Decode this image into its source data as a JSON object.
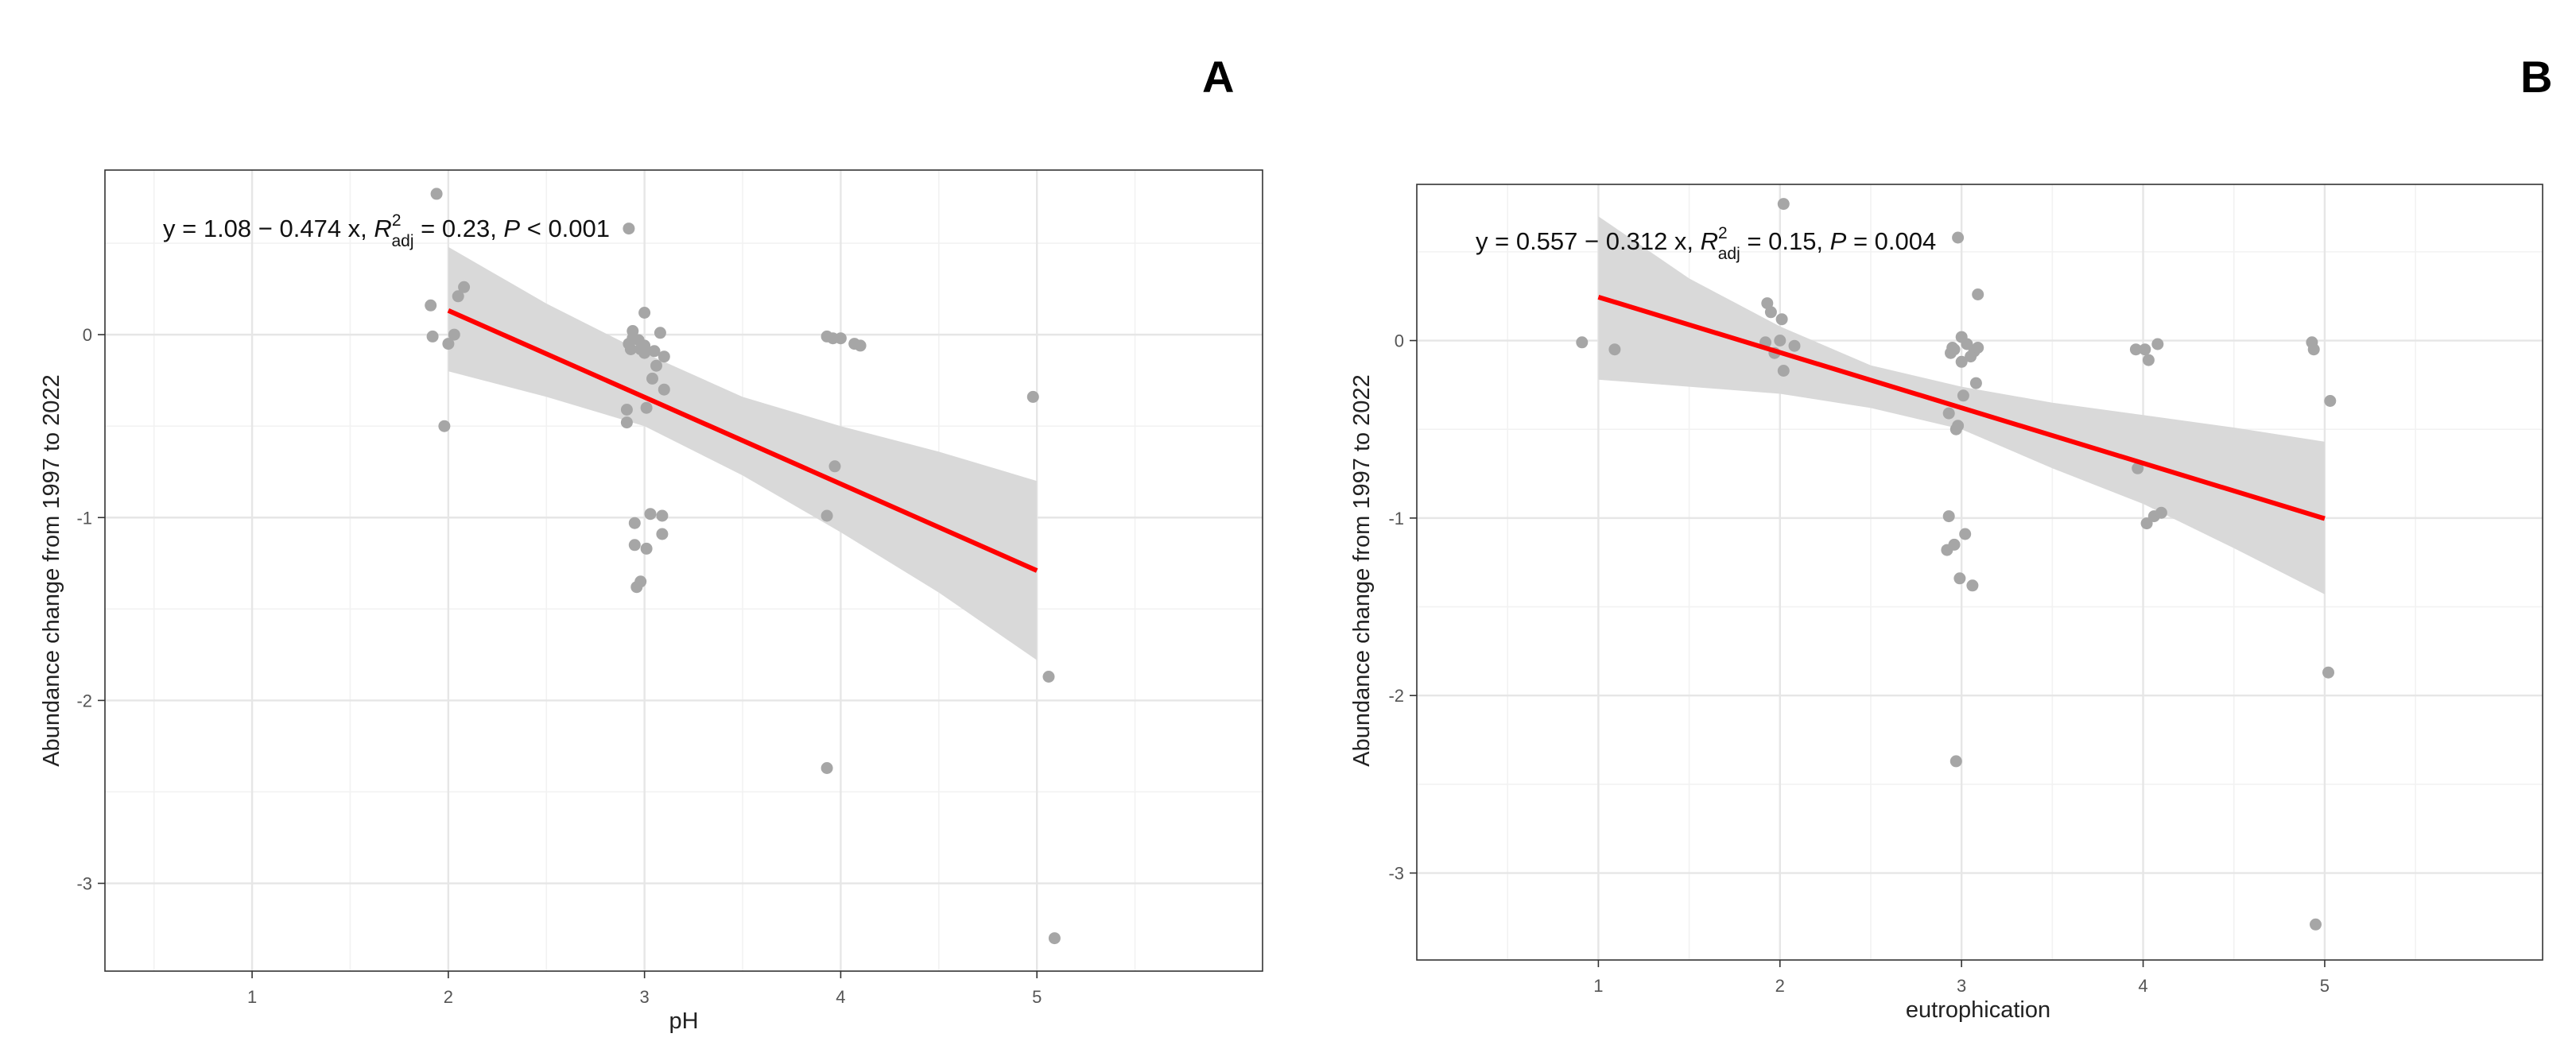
{
  "chart_data": [
    {
      "type": "scatter",
      "panel_label": "A",
      "xlabel": "pH",
      "ylabel": "Abundance change from 1997 to 2022",
      "xlim": [
        0.25,
        6.15
      ],
      "ylim": [
        -3.48,
        0.9
      ],
      "x_ticks": [
        1,
        2,
        3,
        4,
        5
      ],
      "y_ticks": [
        0,
        -1,
        -2,
        -3
      ],
      "x_tick_labels": [
        "1",
        "2",
        "3",
        "4",
        "5"
      ],
      "y_tick_labels": [
        "0",
        "-1",
        "-2",
        "-3"
      ],
      "grid": true,
      "equation": {
        "intercept_slope": "y = 1.08 − 0.474 x, ",
        "r2_symbol": "R",
        "r2_sup": "2",
        "r2_sub": "adj",
        "r2_value": " = 0.23, ",
        "p_symbol": "P",
        "p_value": " < 0.001"
      },
      "regression": {
        "intercept": 1.08,
        "slope": -0.474,
        "x_range": [
          2,
          5
        ],
        "color": "#ff0000"
      },
      "confidence_band": {
        "x": [
          2,
          2.5,
          3,
          3.5,
          4,
          4.5,
          5
        ],
        "upper": [
          0.48,
          0.17,
          -0.1,
          -0.34,
          -0.5,
          -0.64,
          -0.8
        ],
        "lower": [
          -0.2,
          -0.34,
          -0.5,
          -0.77,
          -1.08,
          -1.41,
          -1.78
        ],
        "color": "#d9d9d9"
      },
      "points": [
        [
          1.91,
          0.16
        ],
        [
          1.92,
          -0.01
        ],
        [
          1.94,
          0.77
        ],
        [
          1.98,
          -0.5
        ],
        [
          2.0,
          -0.05
        ],
        [
          2.03,
          0.0
        ],
        [
          2.05,
          0.21
        ],
        [
          2.08,
          0.26
        ],
        [
          2.91,
          -0.41
        ],
        [
          2.91,
          -0.48
        ],
        [
          2.92,
          0.58
        ],
        [
          2.92,
          -0.05
        ],
        [
          2.93,
          -0.08
        ],
        [
          2.94,
          0.02
        ],
        [
          2.94,
          -0.02
        ],
        [
          2.95,
          -1.03
        ],
        [
          2.95,
          -1.15
        ],
        [
          2.96,
          -1.38
        ],
        [
          2.97,
          -0.03
        ],
        [
          2.98,
          -1.35
        ],
        [
          2.98,
          -0.08
        ],
        [
          3.0,
          -0.06
        ],
        [
          3.0,
          -0.1
        ],
        [
          3.0,
          0.12
        ],
        [
          3.01,
          -1.17
        ],
        [
          3.01,
          -0.4
        ],
        [
          3.03,
          -0.98
        ],
        [
          3.04,
          -0.24
        ],
        [
          3.05,
          -0.09
        ],
        [
          3.06,
          -0.17
        ],
        [
          3.08,
          0.01
        ],
        [
          3.09,
          -0.99
        ],
        [
          3.09,
          -1.09
        ],
        [
          3.1,
          -0.12
        ],
        [
          3.1,
          -0.3
        ],
        [
          3.93,
          -0.99
        ],
        [
          3.93,
          -2.37
        ],
        [
          3.93,
          -0.01
        ],
        [
          3.96,
          -0.02
        ],
        [
          3.97,
          -0.72
        ],
        [
          4.0,
          -0.02
        ],
        [
          4.07,
          -0.05
        ],
        [
          4.1,
          -0.06
        ],
        [
          4.98,
          -0.34
        ],
        [
          5.06,
          -1.87
        ],
        [
          5.09,
          -3.3
        ]
      ],
      "point_color": "#a6a6a6"
    },
    {
      "type": "scatter",
      "panel_label": "B",
      "xlabel": "eutrophication",
      "ylabel": "Abundance change from 1997 to 2022",
      "xlim": [
        0.0,
        6.2
      ],
      "ylim": [
        -3.49,
        0.88
      ],
      "x_ticks": [
        1,
        2,
        3,
        4,
        5
      ],
      "y_ticks": [
        0,
        -1,
        -2,
        -3
      ],
      "x_tick_labels": [
        "1",
        "2",
        "3",
        "4",
        "5"
      ],
      "y_tick_labels": [
        "0",
        "-1",
        "-2",
        "-3"
      ],
      "grid": true,
      "equation": {
        "intercept_slope": "y = 0.557 − 0.312 x, ",
        "r2_symbol": "R",
        "r2_sup": "2",
        "r2_sub": "adj",
        "r2_value": " = 0.15, ",
        "p_symbol": "P",
        "p_value": " = 0.004"
      },
      "regression": {
        "intercept": 0.557,
        "slope": -0.312,
        "x_range": [
          1,
          5
        ],
        "color": "#ff0000"
      },
      "confidence_band": {
        "x": [
          1,
          1.5,
          2,
          2.5,
          3,
          3.5,
          4,
          4.5,
          5
        ],
        "upper": [
          0.7,
          0.35,
          0.08,
          -0.14,
          -0.26,
          -0.35,
          -0.42,
          -0.49,
          -0.57
        ],
        "lower": [
          -0.22,
          -0.26,
          -0.3,
          -0.38,
          -0.5,
          -0.72,
          -0.92,
          -1.17,
          -1.43
        ],
        "color": "#d9d9d9"
      },
      "points": [
        [
          0.91,
          -0.01
        ],
        [
          1.09,
          -0.05
        ],
        [
          1.92,
          -0.01
        ],
        [
          1.93,
          0.21
        ],
        [
          1.95,
          0.16
        ],
        [
          1.97,
          -0.07
        ],
        [
          2.0,
          0.0
        ],
        [
          2.01,
          0.12
        ],
        [
          2.02,
          0.77
        ],
        [
          2.02,
          -0.17
        ],
        [
          2.08,
          -0.03
        ],
        [
          2.92,
          -1.18
        ],
        [
          2.93,
          -0.99
        ],
        [
          2.93,
          -0.41
        ],
        [
          2.94,
          -0.07
        ],
        [
          2.95,
          -0.04
        ],
        [
          2.96,
          -1.15
        ],
        [
          2.96,
          -0.05
        ],
        [
          2.97,
          -0.5
        ],
        [
          2.97,
          -2.37
        ],
        [
          2.98,
          0.58
        ],
        [
          2.98,
          -0.48
        ],
        [
          2.99,
          -1.34
        ],
        [
          3.0,
          0.02
        ],
        [
          3.0,
          -0.12
        ],
        [
          3.01,
          -0.31
        ],
        [
          3.02,
          -1.09
        ],
        [
          3.03,
          -0.02
        ],
        [
          3.05,
          -0.09
        ],
        [
          3.06,
          -1.38
        ],
        [
          3.07,
          -0.06
        ],
        [
          3.08,
          -0.24
        ],
        [
          3.09,
          -0.04
        ],
        [
          3.09,
          0.26
        ],
        [
          3.96,
          -0.05
        ],
        [
          3.97,
          -0.72
        ],
        [
          4.01,
          -0.05
        ],
        [
          4.02,
          -1.03
        ],
        [
          4.03,
          -0.11
        ],
        [
          4.06,
          -0.99
        ],
        [
          4.08,
          -0.02
        ],
        [
          4.1,
          -0.97
        ],
        [
          4.93,
          -0.01
        ],
        [
          4.94,
          -0.05
        ],
        [
          4.95,
          -3.29
        ],
        [
          5.02,
          -1.87
        ],
        [
          5.03,
          -0.34
        ]
      ],
      "point_color": "#a6a6a6"
    }
  ]
}
